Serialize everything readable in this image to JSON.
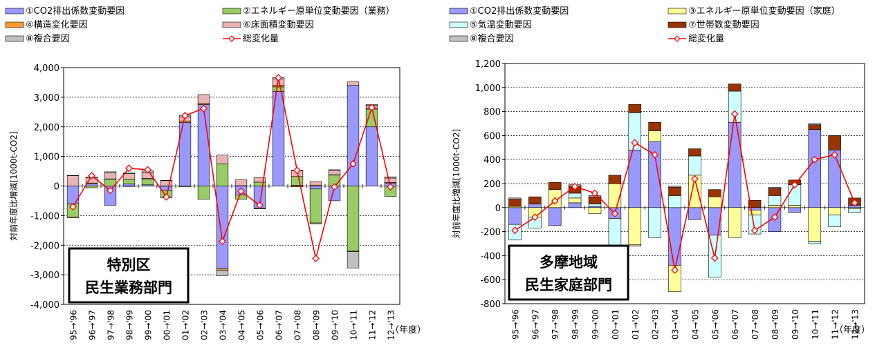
{
  "colors": {
    "co2": "#9999FF",
    "energy_biz": "#99CC66",
    "energy_home": "#FFFF99",
    "temp": "#CCFFFF",
    "structure": "#FF9933",
    "floor": "#E8B4B4",
    "household": "#993300",
    "composite": "#C0C0C0",
    "total": "#FF0000"
  },
  "chart_data": [
    {
      "type": "bar",
      "subtype": "stacked",
      "title_lines": [
        "特別区",
        "民生業務部門"
      ],
      "ylabel": "対前年度比増減[1000t-CO2]",
      "xlabel": "（年度）",
      "ylim": [
        -4000,
        4000
      ],
      "yticks": [
        -4000,
        -3000,
        -2000,
        -1000,
        0,
        1000,
        2000,
        3000,
        4000
      ],
      "ytick_labels": [
        "-4,000",
        "-3,000",
        "-2,000",
        "-1,000",
        "0",
        "1,000",
        "2,000",
        "3,000",
        "4,000"
      ],
      "grid": "horizontal",
      "legend_position": "top",
      "categories": [
        "95→'96",
        "96→'97",
        "97→'98",
        "98→'99",
        "99→'00",
        "00→'01",
        "01→'02",
        "02→'03",
        "03→'04",
        "04→'05",
        "05→'06",
        "06→'07",
        "07→'08",
        "08→'09",
        "09→'10",
        "10→'11",
        "11→'12",
        "12→'13"
      ],
      "series": [
        {
          "name": "①CO2排出係数変動要因",
          "key": "co2",
          "values": [
            -600,
            80,
            -650,
            70,
            40,
            -150,
            2150,
            2750,
            -2800,
            -300,
            -750,
            3200,
            20,
            -100,
            -500,
            3400,
            2000,
            100
          ]
        },
        {
          "name": "②エネルギー原単位変動要因（業務）",
          "key": "energy_biz",
          "values": [
            -450,
            -60,
            230,
            150,
            200,
            -250,
            -30,
            -450,
            750,
            -150,
            130,
            150,
            300,
            -1150,
            370,
            -2200,
            600,
            -350
          ]
        },
        {
          "name": "④構造変化要因",
          "key": "structure",
          "values": [
            -20,
            20,
            10,
            -15,
            15,
            5,
            50,
            40,
            -50,
            10,
            -5,
            60,
            -30,
            30,
            10,
            -20,
            30,
            20
          ]
        },
        {
          "name": "⑥床面積変動要因",
          "key": "floor",
          "values": [
            350,
            180,
            200,
            200,
            200,
            180,
            130,
            300,
            300,
            200,
            150,
            200,
            200,
            120,
            150,
            120,
            100,
            150
          ]
        },
        {
          "name": "⑧複合要因",
          "key": "composite",
          "values": [
            10,
            20,
            40,
            20,
            60,
            5,
            60,
            0,
            -180,
            0,
            -20,
            60,
            20,
            -30,
            20,
            -550,
            20,
            40
          ]
        }
      ],
      "total": {
        "name": "総変化量",
        "values": [
          -700,
          350,
          -150,
          600,
          550,
          -370,
          2380,
          2620,
          -1870,
          -180,
          -650,
          3660,
          530,
          -2450,
          -30,
          750,
          2650,
          -30
        ]
      }
    },
    {
      "type": "bar",
      "subtype": "stacked",
      "title_lines": [
        "多摩地域",
        "民生家庭部門"
      ],
      "ylabel": "対前年度比増減[1000t-CO2]",
      "xlabel": "（年度）",
      "ylim": [
        -800,
        1200
      ],
      "yticks": [
        -800,
        -600,
        -400,
        -200,
        0,
        200,
        400,
        600,
        800,
        1000,
        1200
      ],
      "ytick_labels": [
        "-800",
        "-600",
        "-400",
        "-200",
        "0",
        "200",
        "400",
        "600",
        "800",
        "1,000",
        "1,200"
      ],
      "grid": "horizontal",
      "legend_position": "top",
      "categories": [
        "95→'96",
        "96→'97",
        "97→'98",
        "98→'99",
        "99→'00",
        "00→'01",
        "01→'02",
        "02→'03",
        "03→'04",
        "04→'05",
        "05→'06",
        "06→'07",
        "07→'08",
        "08→'09",
        "09→'10",
        "10→'11",
        "11→'12",
        "12→'13"
      ],
      "series": [
        {
          "name": "①CO2排出係数変動要因",
          "key": "co2",
          "values": [
            -140,
            30,
            -150,
            40,
            10,
            -90,
            480,
            550,
            -480,
            -100,
            -230,
            710,
            -20,
            -200,
            -40,
            650,
            480,
            20
          ]
        },
        {
          "name": "③エネルギー原単位変動要因（家庭）",
          "key": "energy_home",
          "values": [
            10,
            -80,
            150,
            40,
            -50,
            200,
            -310,
            90,
            -220,
            270,
            90,
            -250,
            -40,
            20,
            20,
            -280,
            -60,
            -10
          ]
        },
        {
          "name": "⑤気温変動要因",
          "key": "temp",
          "values": [
            -130,
            -90,
            0,
            40,
            20,
            -230,
            310,
            -250,
            100,
            160,
            -350,
            260,
            -160,
            80,
            170,
            -20,
            -100,
            -30
          ]
        },
        {
          "name": "⑦世帯数変動要因",
          "key": "household",
          "values": [
            60,
            60,
            60,
            60,
            60,
            70,
            70,
            70,
            70,
            60,
            60,
            60,
            60,
            60,
            40,
            40,
            120,
            60
          ]
        },
        {
          "name": "⑧複合要因",
          "key": "composite",
          "values": [
            10,
            0,
            0,
            10,
            10,
            0,
            -10,
            0,
            10,
            0,
            0,
            0,
            0,
            10,
            0,
            10,
            0,
            0
          ]
        }
      ],
      "total": {
        "name": "総変化量",
        "values": [
          -190,
          -80,
          55,
          175,
          120,
          -50,
          540,
          440,
          -520,
          240,
          -420,
          780,
          -190,
          -80,
          190,
          400,
          440,
          40
        ]
      }
    }
  ]
}
